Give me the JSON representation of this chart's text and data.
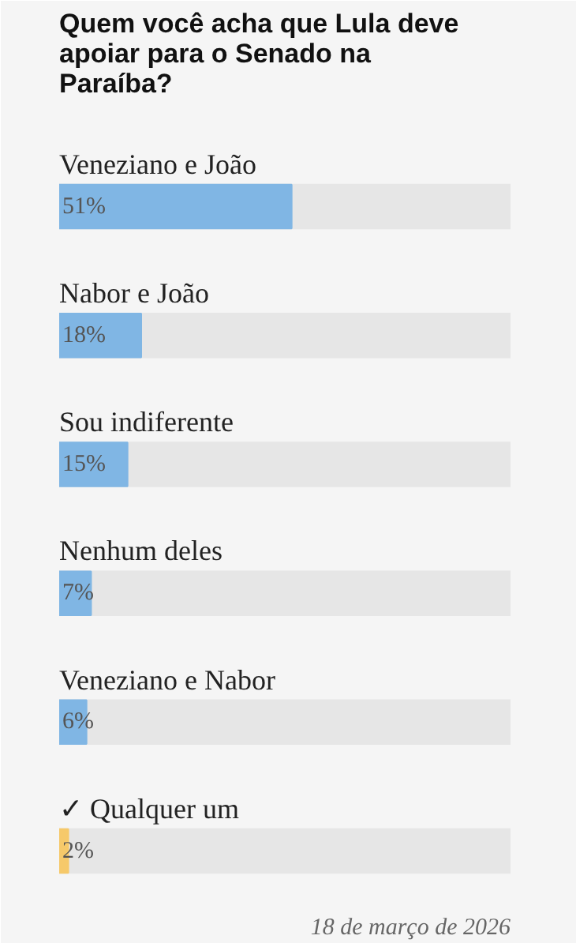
{
  "chart_data": {
    "type": "bar",
    "orientation": "horizontal",
    "title": "Quem você acha que Lula deve apoiar para o Senado na Paraíba?",
    "categories": [
      "Veneziano e João",
      "Nabor e João",
      "Sou indiferente",
      "Nenhum deles",
      "Veneziano e Nabor",
      "✓ Qualquer um"
    ],
    "values": [
      51,
      18,
      15,
      7,
      6,
      2
    ],
    "colors": [
      "#80b6e4",
      "#80b6e4",
      "#80b6e4",
      "#80b6e4",
      "#80b6e4",
      "#f6c96a"
    ],
    "value_labels": [
      "51%",
      "18%",
      "15%",
      "7%",
      "6%",
      "2%"
    ],
    "annotations": [
      "18 de março de 2026"
    ]
  }
}
